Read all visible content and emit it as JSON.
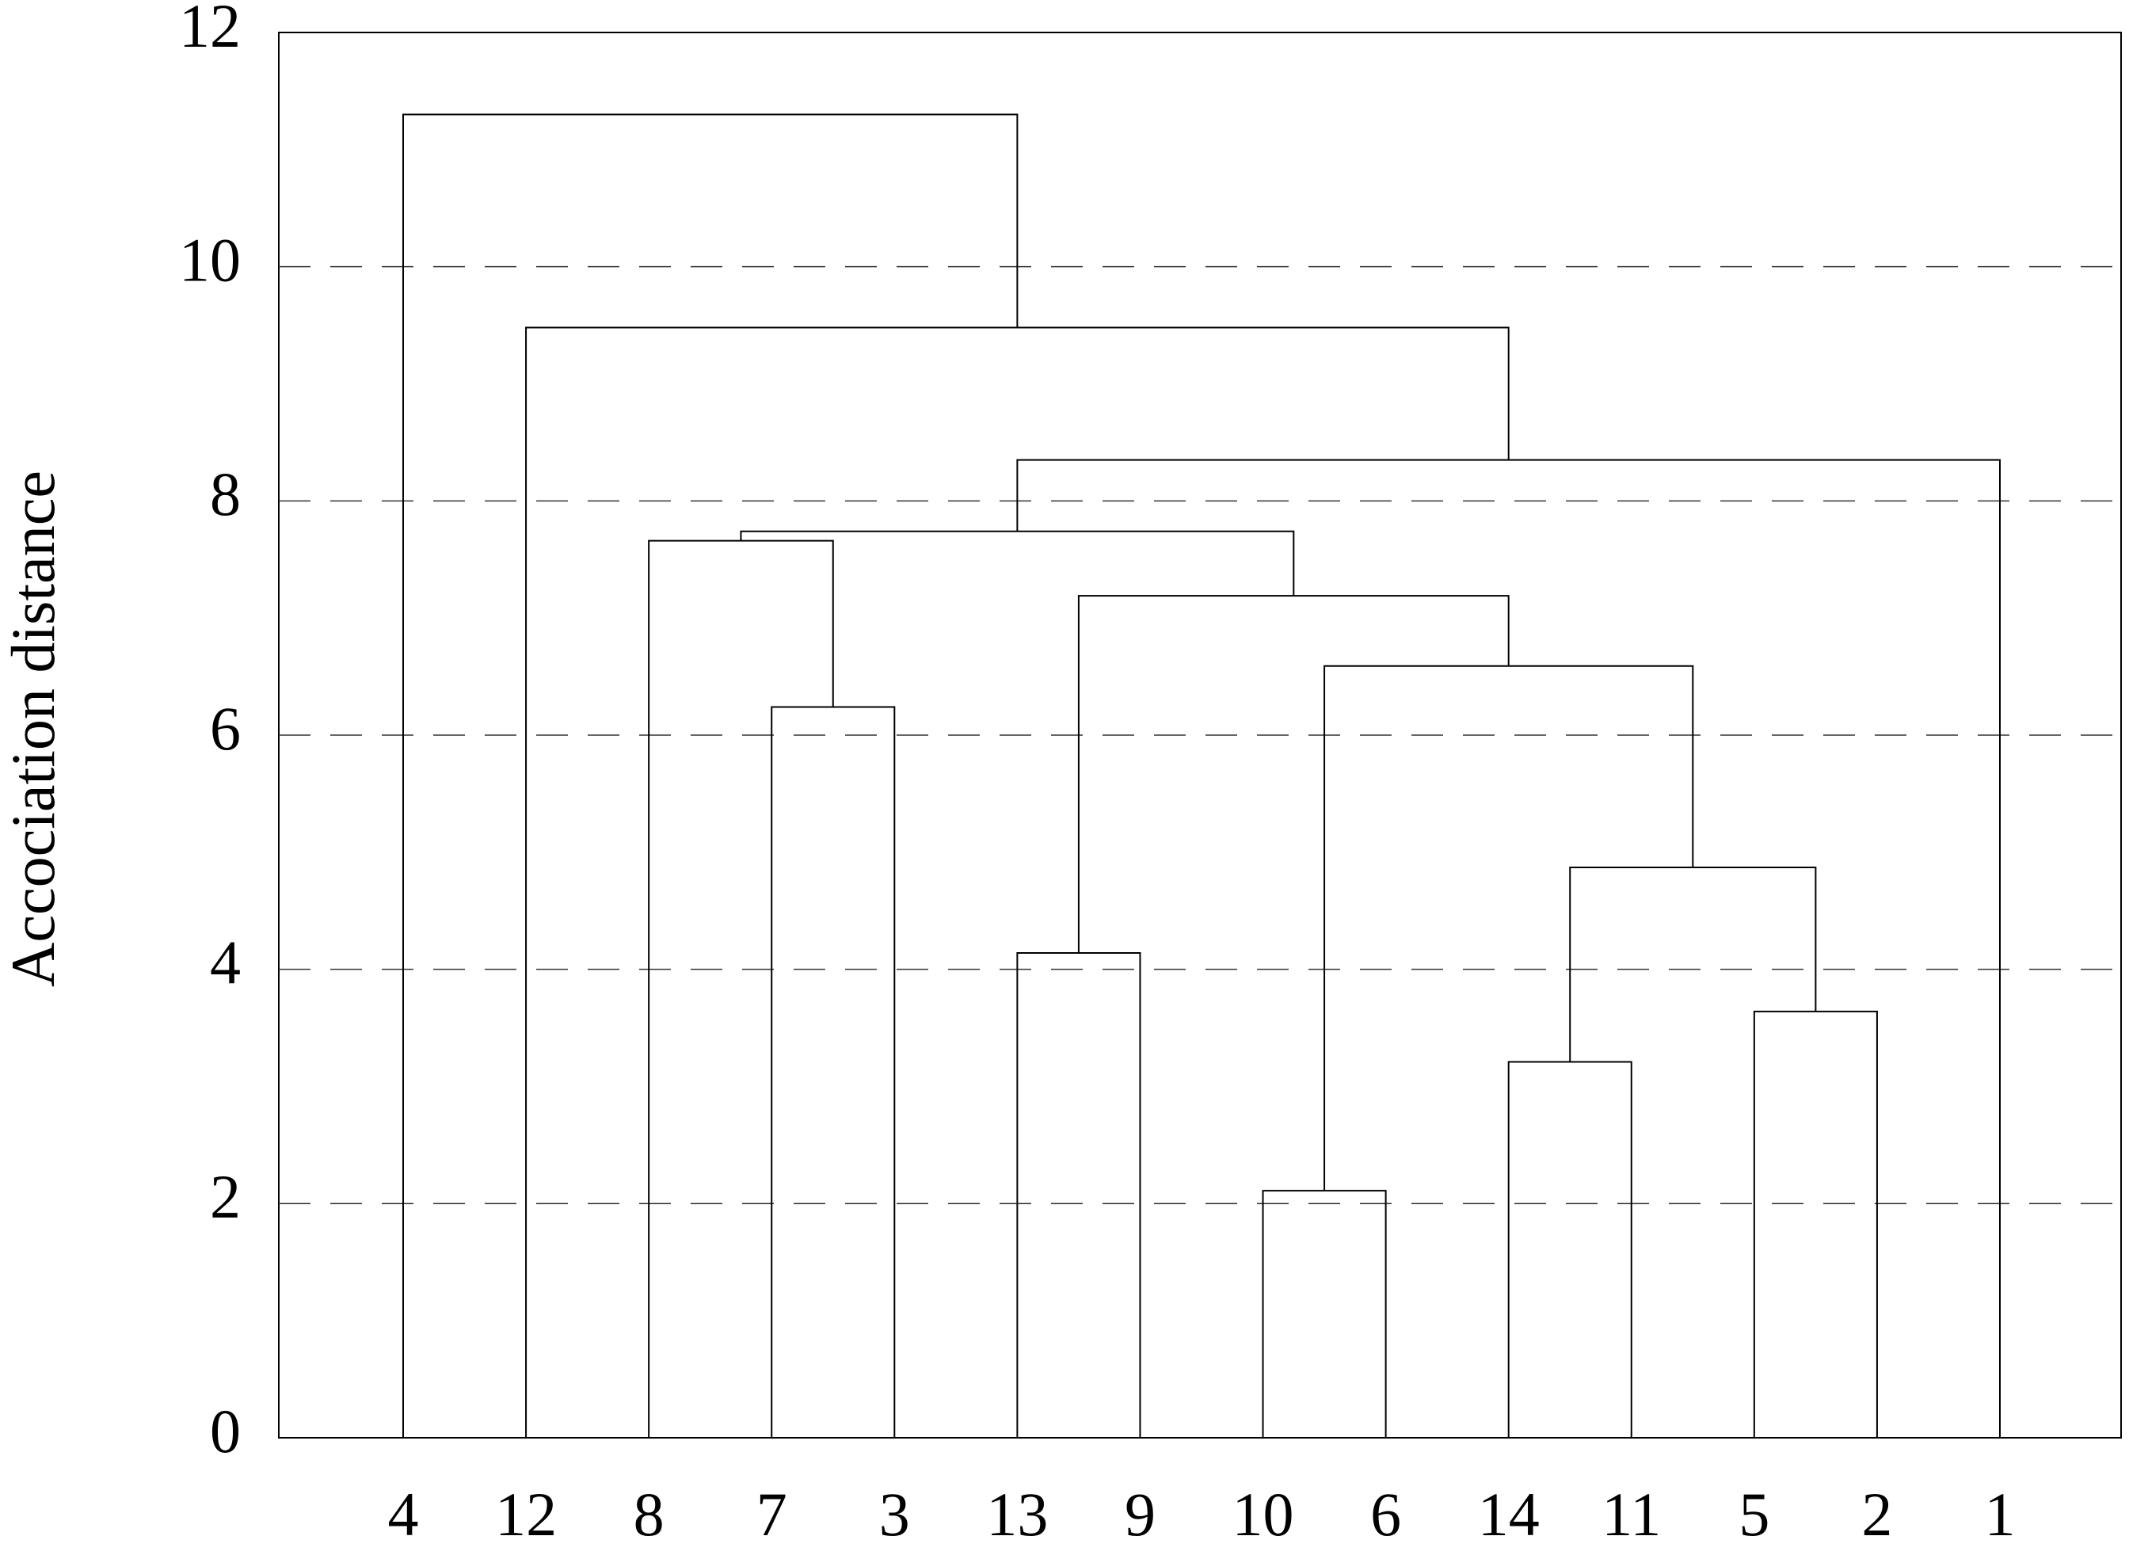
{
  "chart_data": {
    "type": "dendrogram",
    "y_label": "Accociation distance",
    "categories": [
      "4",
      "12",
      "8",
      "7",
      "3",
      "13",
      "9",
      "10",
      "6",
      "14",
      "11",
      "5",
      "2",
      "1"
    ],
    "merges": [
      {
        "children": [
          3,
          4
        ],
        "height": 6.24
      },
      {
        "children": [
          2,
          14
        ],
        "height": 7.66
      },
      {
        "children": [
          5,
          6
        ],
        "height": 4.14
      },
      {
        "children": [
          7,
          8
        ],
        "height": 2.11
      },
      {
        "children": [
          9,
          10
        ],
        "height": 3.21
      },
      {
        "children": [
          11,
          12
        ],
        "height": 3.64
      },
      {
        "children": [
          18,
          19
        ],
        "height": 4.87
      },
      {
        "children": [
          17,
          20
        ],
        "height": 6.59
      },
      {
        "children": [
          16,
          21
        ],
        "height": 7.19
      },
      {
        "children": [
          15,
          22
        ],
        "height": 7.74
      },
      {
        "children": [
          23,
          13
        ],
        "height": 8.35
      },
      {
        "children": [
          1,
          24
        ],
        "height": 9.48
      },
      {
        "children": [
          0,
          25
        ],
        "height": 11.3
      }
    ],
    "color": "#000000",
    "ylim": [
      0,
      12
    ],
    "yticks": [
      0,
      2,
      4,
      6,
      8,
      10,
      12
    ],
    "grid": true
  }
}
